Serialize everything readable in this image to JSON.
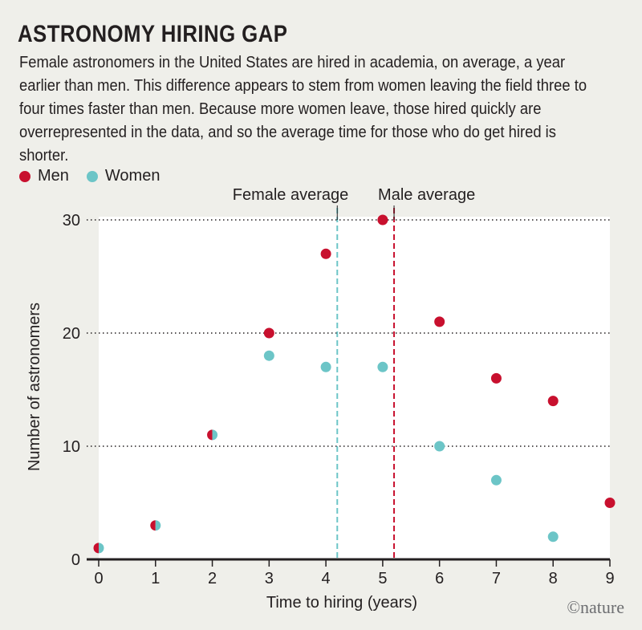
{
  "header": {
    "title": "ASTRONOMY HIRING GAP",
    "subtitle": "Female astronomers in the United States are hired in academia, on average, a year earlier than men. This difference appears to stem from women leaving the field three to four times faster than men. Because more women leave, those hired quickly are overrepresented in the data, and so the average time for those who do get hired is shorter."
  },
  "credit": "©nature",
  "colors": {
    "men": "#c8102e",
    "women": "#6cc5c7",
    "plot_background": "#ffffff",
    "page_background": "#efefea"
  },
  "chart_data": {
    "type": "scatter",
    "title": "ASTRONOMY HIRING GAP",
    "xlabel": "Time to hiring (years)",
    "ylabel": "Number of astronomers",
    "xlim": [
      0,
      9
    ],
    "ylim": [
      0,
      30
    ],
    "x_ticks": [
      0,
      1,
      2,
      3,
      4,
      5,
      6,
      7,
      8,
      9
    ],
    "y_ticks": [
      0,
      10,
      20,
      30
    ],
    "grid": "horizontal dotted",
    "legend_position": "top-left",
    "series": [
      {
        "name": "Men",
        "color": "#c8102e",
        "points": [
          {
            "x": 0,
            "y": 1
          },
          {
            "x": 1,
            "y": 3
          },
          {
            "x": 2,
            "y": 11
          },
          {
            "x": 3,
            "y": 20
          },
          {
            "x": 4,
            "y": 27
          },
          {
            "x": 5,
            "y": 30
          },
          {
            "x": 6,
            "y": 21
          },
          {
            "x": 7,
            "y": 16
          },
          {
            "x": 8,
            "y": 14
          },
          {
            "x": 9,
            "y": 5
          }
        ]
      },
      {
        "name": "Women",
        "color": "#6cc5c7",
        "points": [
          {
            "x": 0,
            "y": 1
          },
          {
            "x": 1,
            "y": 3
          },
          {
            "x": 2,
            "y": 11
          },
          {
            "x": 3,
            "y": 18
          },
          {
            "x": 4,
            "y": 17
          },
          {
            "x": 5,
            "y": 17
          },
          {
            "x": 6,
            "y": 10
          },
          {
            "x": 7,
            "y": 7
          },
          {
            "x": 8,
            "y": 2
          }
        ]
      }
    ],
    "reference_lines": [
      {
        "label": "Female average",
        "x": 4.2,
        "color": "#6cc5c7"
      },
      {
        "label": "Male average",
        "x": 5.2,
        "color": "#c8102e"
      }
    ]
  }
}
